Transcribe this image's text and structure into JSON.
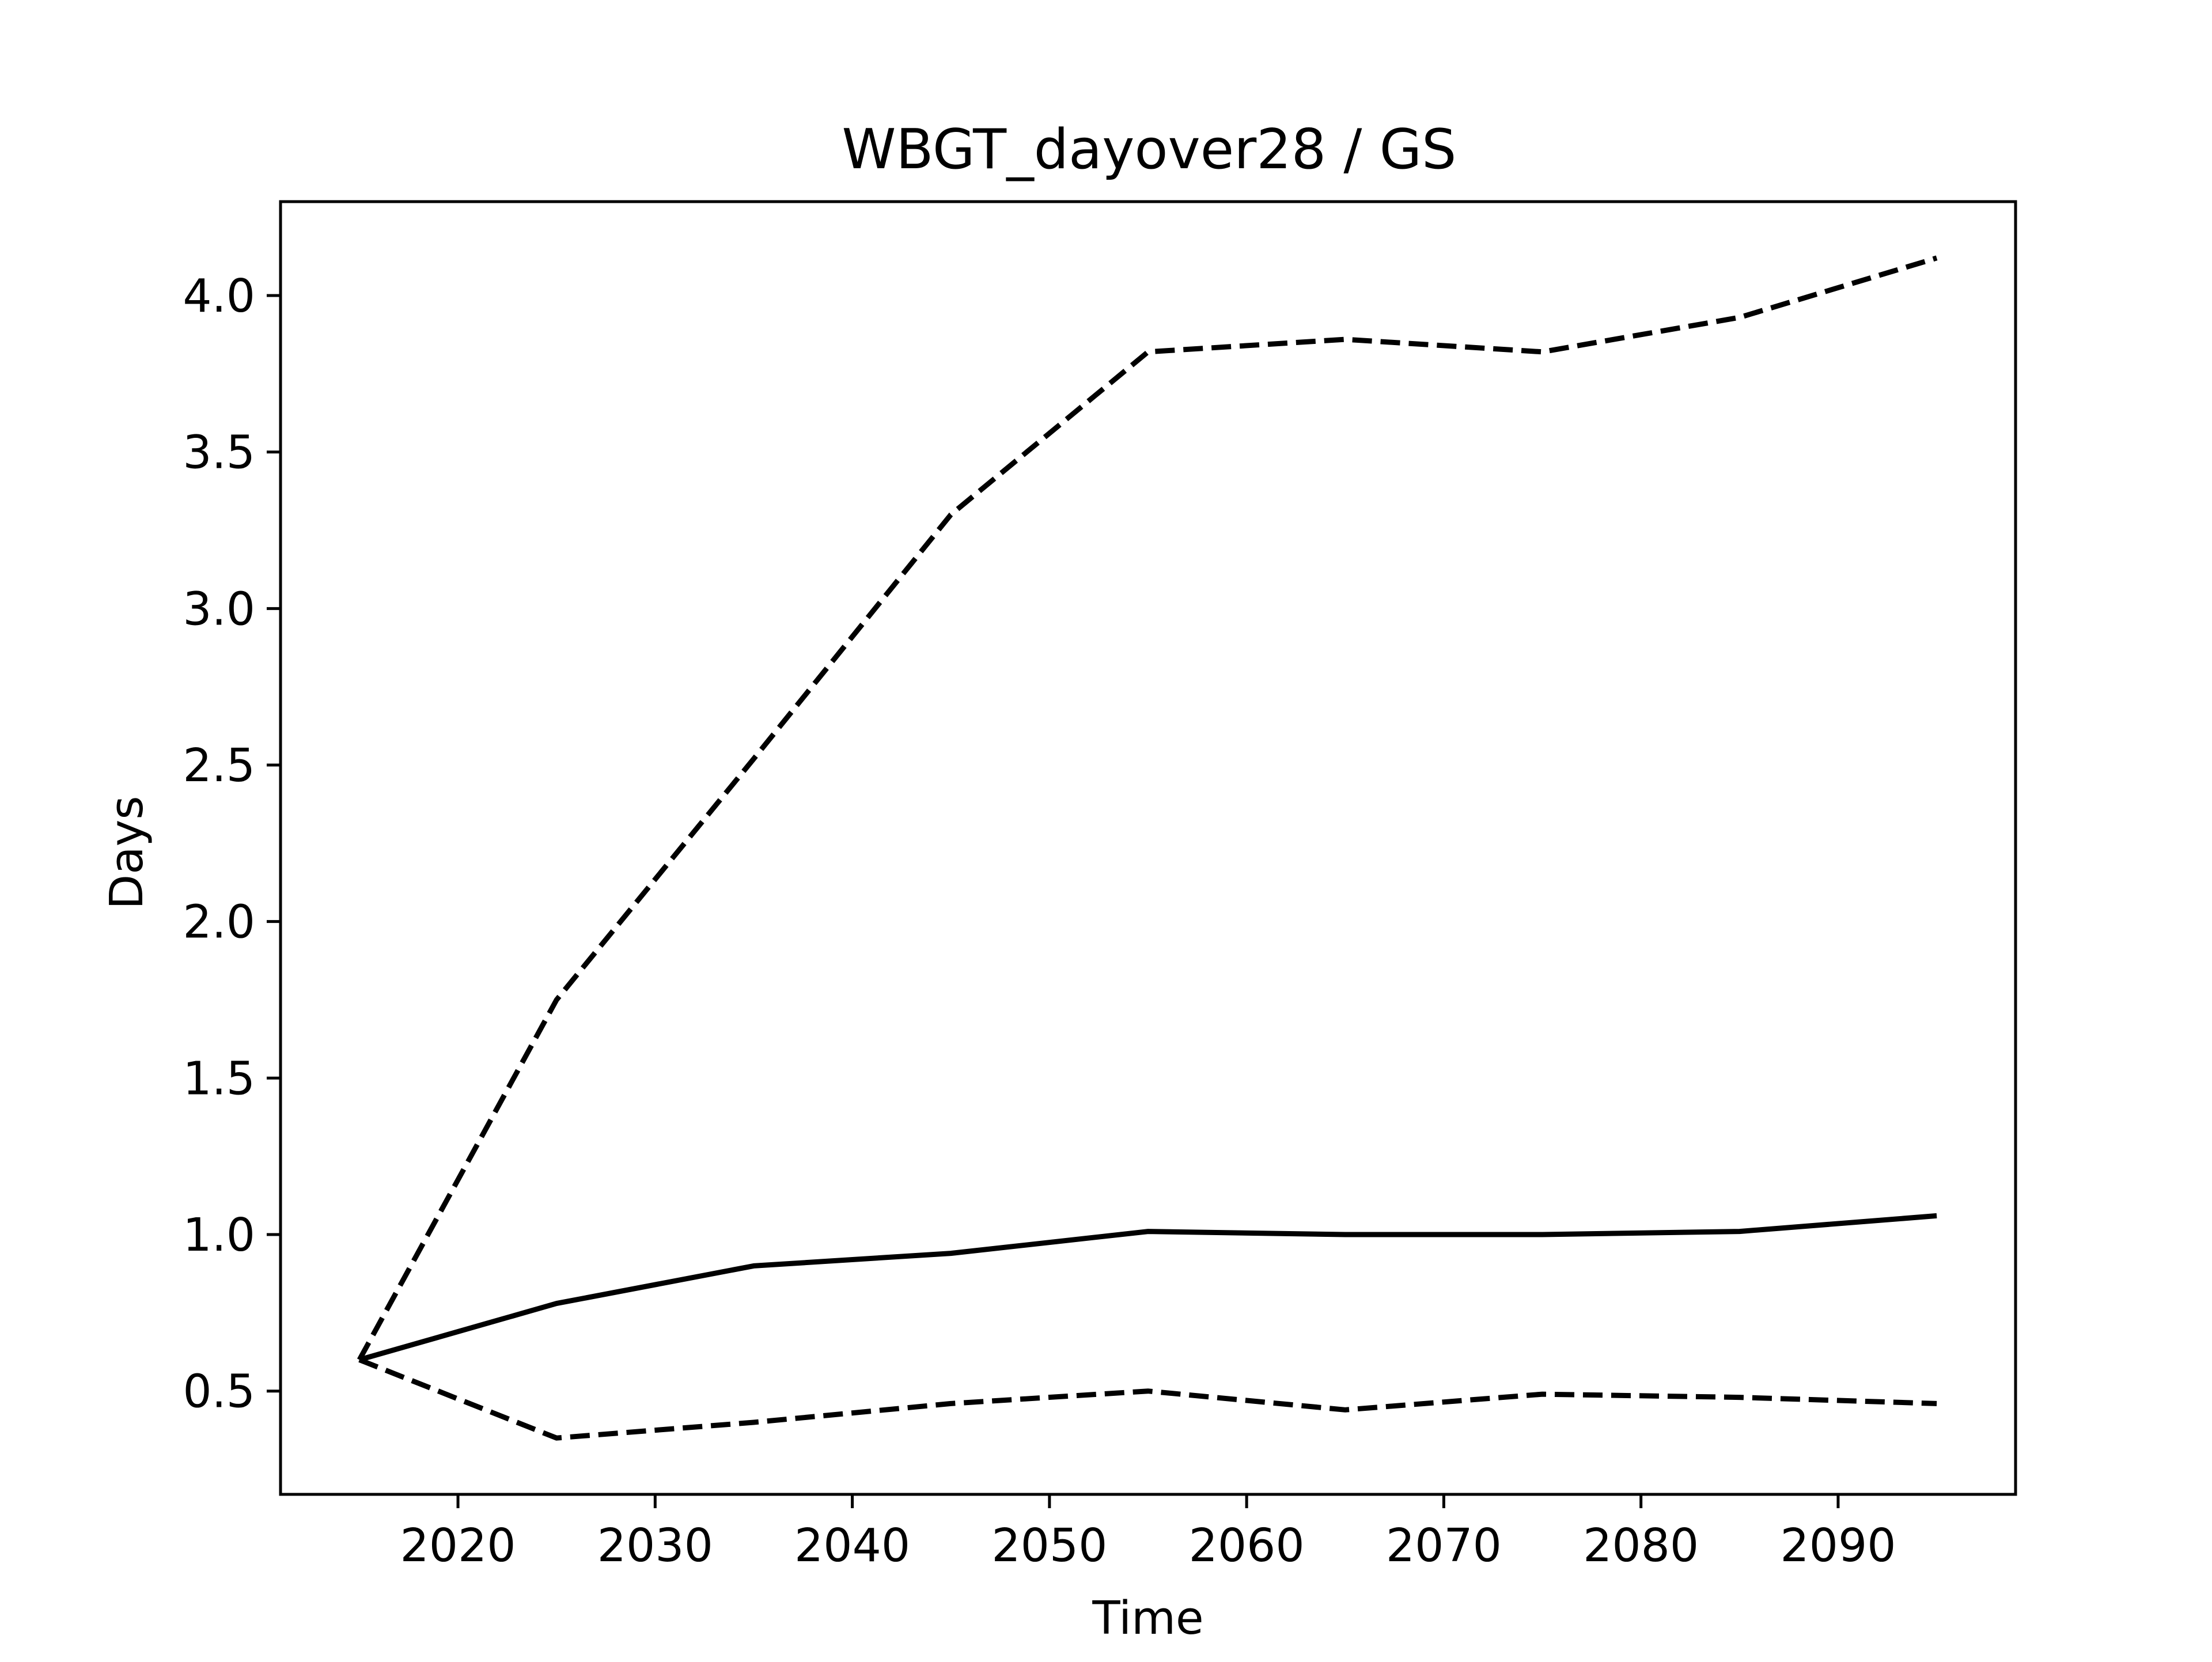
{
  "chart_data": {
    "type": "line",
    "title": "WBGT_dayover28 / GS",
    "xlabel": "Time",
    "ylabel": "Days",
    "xlim": [
      2011,
      2099
    ],
    "ylim": [
      0.17,
      4.3
    ],
    "xticks": [
      2020,
      2030,
      2040,
      2050,
      2060,
      2070,
      2080,
      2090
    ],
    "yticks": [
      0.5,
      1.0,
      1.5,
      2.0,
      2.5,
      3.0,
      3.5,
      4.0
    ],
    "xtick_labels": [
      "2020",
      "2030",
      "2040",
      "2050",
      "2060",
      "2070",
      "2080",
      "2090"
    ],
    "ytick_labels": [
      "0.5",
      "1.0",
      "1.5",
      "2.0",
      "2.5",
      "3.0",
      "3.5",
      "4.0"
    ],
    "grid": false,
    "x": [
      2015,
      2025,
      2035,
      2045,
      2055,
      2065,
      2075,
      2085,
      2095
    ],
    "series": [
      {
        "line_style": "solid",
        "color": "#000000",
        "values": [
          0.6,
          0.78,
          0.9,
          0.94,
          1.01,
          1.0,
          1.0,
          1.01,
          1.06
        ]
      },
      {
        "line_style": "dashed",
        "color": "#000000",
        "values": [
          0.6,
          1.75,
          2.52,
          3.3,
          3.82,
          3.86,
          3.82,
          3.93,
          4.12
        ]
      },
      {
        "line_style": "dashed",
        "color": "#000000",
        "values": [
          0.6,
          0.35,
          0.4,
          0.46,
          0.5,
          0.44,
          0.49,
          0.48,
          0.46
        ]
      }
    ]
  }
}
